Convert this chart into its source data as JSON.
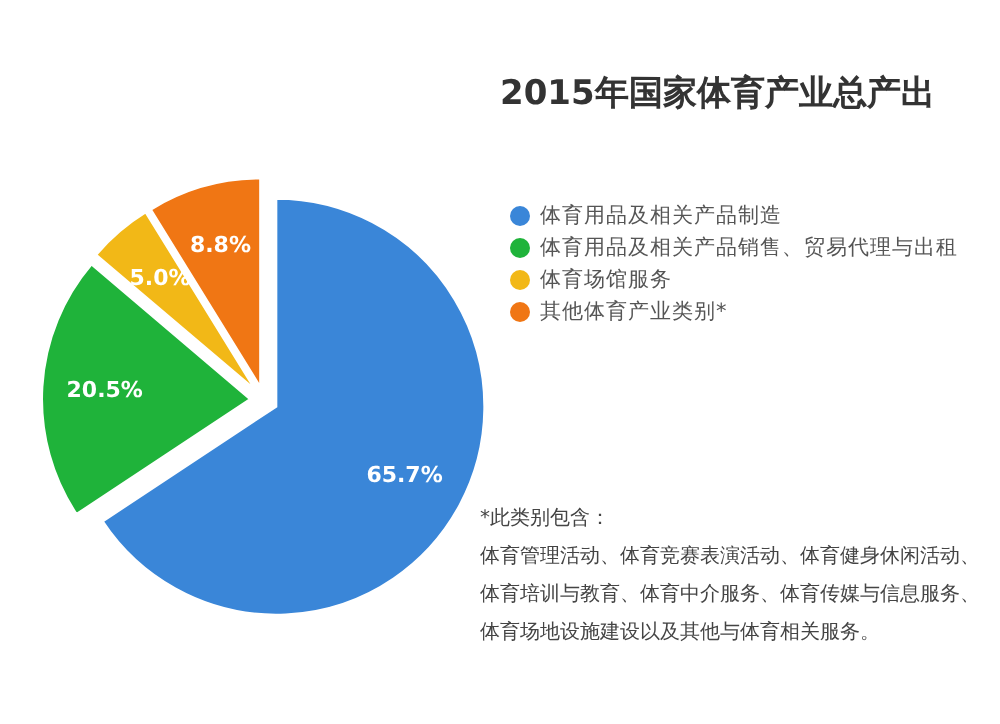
{
  "chart_data": {
    "type": "pie",
    "title": "2015年国家体育产业总产出",
    "categories": [
      "体育用品及相关产品制造",
      "体育用品及相关产品销售、贸易代理与出租",
      "体育场馆服务",
      "其他体育产业类别*"
    ],
    "values": [
      65.7,
      20.5,
      5.0,
      8.8
    ],
    "colors": [
      "#3a86d8",
      "#1fb33a",
      "#f2b817",
      "#f07614"
    ],
    "value_labels": [
      "65.7%",
      "20.5%",
      "5.0%",
      "8.8%"
    ],
    "legend": "right",
    "annotations": [
      "*此类别包含：",
      "体育管理活动、体育竞赛表演活动、体育健身休闲活动、",
      "体育培训与教育、体育中介服务、体育传媒与信息服务、",
      "体育场地设施建设以及其他与体育相关服务。"
    ]
  }
}
